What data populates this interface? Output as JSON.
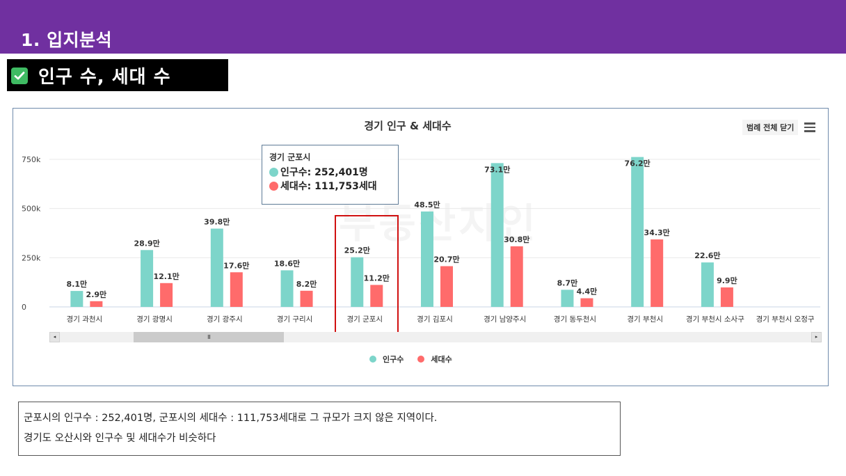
{
  "header": {
    "title": "1. 입지분석"
  },
  "banner": {
    "icon": "check-box-icon",
    "title": "인구 수, 세대 수"
  },
  "chart": {
    "legend_toggle_label": "범례 전체 닫기",
    "menu_icon": "hamburger-menu-icon",
    "watermark": "부동산지인",
    "tooltip": {
      "title": "경기 군포시",
      "rows": [
        {
          "label": "인구수: 252,401명",
          "color": "#7dd5ca"
        },
        {
          "label": "세대수: 111,753세대",
          "color": "#ff6b6b"
        }
      ]
    },
    "scrollbar": {
      "thumb_glyph": "III",
      "left_arrow": "◂",
      "right_arrow": "▸"
    },
    "highlight_category": "경기 군포시"
  },
  "chart_data": {
    "type": "bar",
    "title": "경기 인구 & 세대수",
    "xlabel": "",
    "ylabel": "",
    "ylim": [
      0,
      750000
    ],
    "yticks": [
      0,
      250000,
      500000,
      750000
    ],
    "ytick_labels": [
      "0",
      "250k",
      "500k",
      "750k"
    ],
    "grid": true,
    "legend_position": "bottom",
    "categories": [
      "경기 과천시",
      "경기 광명시",
      "경기 광주시",
      "경기 구리시",
      "경기 군포시",
      "경기 김포시",
      "경기 남양주시",
      "경기 동두천시",
      "경기 부천시",
      "경기 부천시 소사구",
      "경기 부천시 오정구"
    ],
    "series": [
      {
        "name": "인구수",
        "color": "#7dd5ca",
        "values": [
          81000,
          289000,
          398000,
          186000,
          252401,
          485000,
          731000,
          87000,
          762000,
          226000,
          null
        ],
        "labels": [
          "8.1만",
          "28.9만",
          "39.8만",
          "18.6만",
          "25.2만",
          "48.5만",
          "73.1만",
          "8.7만",
          "76.2만",
          "22.6만",
          ""
        ]
      },
      {
        "name": "세대수",
        "color": "#ff6b6b",
        "values": [
          29000,
          121000,
          176000,
          82000,
          111753,
          207000,
          308000,
          44000,
          343000,
          99000,
          null
        ],
        "labels": [
          "2.9만",
          "12.1만",
          "17.6만",
          "8.2만",
          "11.2만",
          "20.7만",
          "30.8만",
          "4.4만",
          "34.3만",
          "9.9만",
          ""
        ]
      }
    ]
  },
  "comment": {
    "lines": [
      "군포시의 인구수 : 252,401명, 군포시의 세대수 : 111,753세대로 그 규모가 크지 않은 지역이다.",
      "경기도 오산시와 인구수 및 세대수가 비슷하다"
    ]
  }
}
